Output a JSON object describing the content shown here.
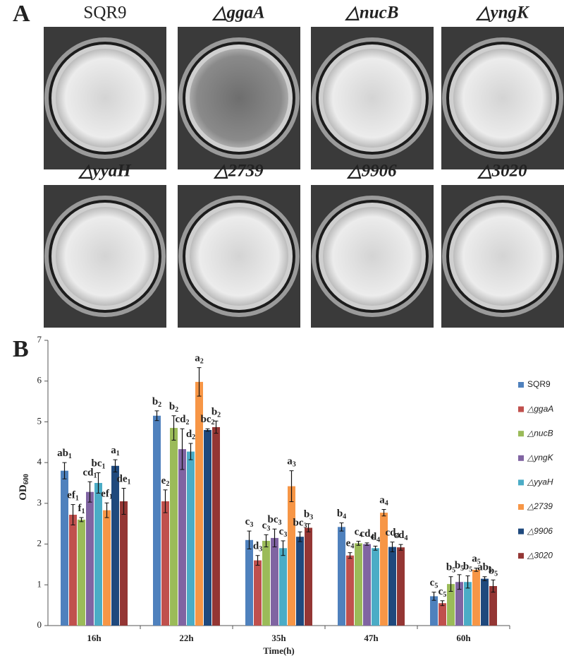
{
  "panel_a": {
    "label": "A",
    "wells": [
      "SQR9",
      "△ggaA",
      "△nucB",
      "△yngK",
      "△yyaH",
      "△2739",
      "△9906",
      "△3020"
    ]
  },
  "chart_data": {
    "type": "bar",
    "label": "B",
    "categories": [
      "16h",
      "22h",
      "35h",
      "47h",
      "60h"
    ],
    "group_subscripts": [
      "1",
      "2",
      "3",
      "4",
      "5"
    ],
    "x_label": "Time(h)",
    "y_label": {
      "main": "OD",
      "sub": "600"
    },
    "ylim": [
      0,
      7
    ],
    "yticks": [
      0,
      1,
      2,
      3,
      4,
      5,
      6,
      7
    ],
    "series": [
      {
        "name": "SQR9",
        "color": "#4f81bd",
        "values": [
          3.8,
          5.15,
          2.1,
          2.42,
          0.72
        ],
        "errors": [
          0.2,
          0.12,
          0.22,
          0.1,
          0.1
        ],
        "letters": [
          "ab",
          "b",
          "c",
          "b",
          "c"
        ]
      },
      {
        "name": "△ggaA",
        "color": "#c0504d",
        "values": [
          2.72,
          3.05,
          1.6,
          1.72,
          0.55
        ],
        "errors": [
          0.25,
          0.28,
          0.12,
          0.07,
          0.06
        ],
        "letters": [
          "ef",
          "e",
          "d",
          "e",
          "c"
        ]
      },
      {
        "name": "△nucB",
        "color": "#9bbb59",
        "values": [
          2.6,
          4.85,
          2.08,
          2.02,
          1.02
        ],
        "errors": [
          0.05,
          0.3,
          0.15,
          0.05,
          0.18
        ],
        "letters": [
          "f",
          "b",
          "c",
          "c",
          "b"
        ]
      },
      {
        "name": "△yngK",
        "color": "#8064a2",
        "values": [
          3.28,
          4.33,
          2.15,
          2.0,
          1.07
        ],
        "errors": [
          0.25,
          0.5,
          0.22,
          0.03,
          0.18
        ],
        "letters": [
          "cd",
          "cd",
          "bc",
          "cd",
          "b"
        ]
      },
      {
        "name": "△yyaH",
        "color": "#4bacc6",
        "values": [
          3.5,
          4.27,
          1.9,
          1.9,
          1.07
        ],
        "errors": [
          0.25,
          0.2,
          0.18,
          0.05,
          0.15
        ],
        "letters": [
          "bc",
          "d",
          "c",
          "d",
          "b"
        ]
      },
      {
        "name": "△2739",
        "color": "#f79646",
        "values": [
          2.83,
          5.98,
          3.42,
          2.77,
          1.37
        ],
        "errors": [
          0.18,
          0.35,
          0.38,
          0.08,
          0.04
        ],
        "letters": [
          "ef",
          "a",
          "a",
          "a",
          "a"
        ]
      },
      {
        "name": "△9906",
        "color": "#1f497d",
        "values": [
          3.92,
          4.8,
          2.18,
          1.93,
          1.15
        ],
        "errors": [
          0.15,
          0.03,
          0.12,
          0.12,
          0.05
        ],
        "letters": [
          "a",
          "bc",
          "bc",
          "cd",
          "ab"
        ]
      },
      {
        "name": "△3020",
        "color": "#943634",
        "values": [
          3.05,
          4.87,
          2.4,
          1.92,
          0.97
        ],
        "errors": [
          0.32,
          0.15,
          0.1,
          0.07,
          0.15
        ],
        "letters": [
          "de",
          "b",
          "b",
          "cd",
          "b"
        ]
      }
    ]
  }
}
